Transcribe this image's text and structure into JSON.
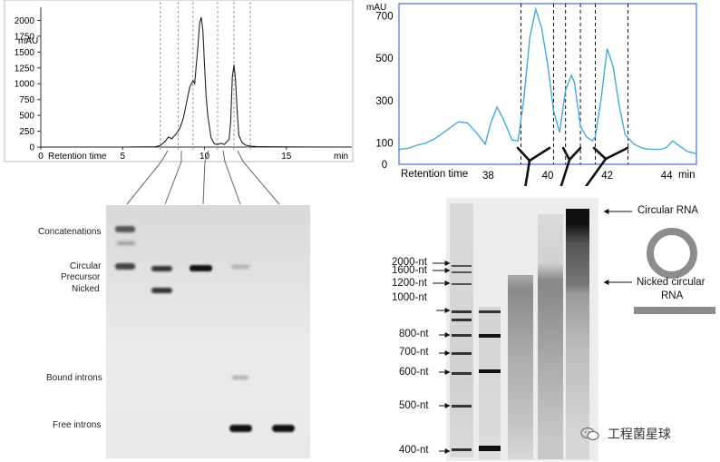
{
  "left_chromatogram": {
    "chart_data": {
      "type": "line",
      "ylabel": "mAU",
      "xlabel": "Retention time",
      "x_unit": "min",
      "yticks": [
        "2000",
        "1750",
        "1500",
        "1250",
        "1000",
        "750",
        "500",
        "250",
        "0"
      ],
      "xticks": [
        "0",
        "5",
        "10",
        "15"
      ],
      "xlim": [
        0,
        19
      ],
      "ylim": [
        0,
        2150
      ],
      "fraction_bounds_min": [
        7.3,
        8.4,
        9.3,
        10.8,
        11.8,
        12.8
      ],
      "series": [
        {
          "x": [
            0,
            5,
            7.0,
            7.3,
            7.6,
            7.8,
            8.0,
            8.3,
            8.5,
            8.7,
            8.9,
            9.1,
            9.3,
            9.4,
            9.6,
            9.7,
            9.8,
            9.9,
            10.0,
            10.1,
            10.2,
            10.4,
            10.6,
            10.8,
            11.0,
            11.2,
            11.5,
            11.6,
            11.7,
            11.8,
            11.9,
            12.0,
            12.1,
            12.3,
            12.5,
            12.8,
            13.2,
            14,
            16,
            19
          ],
          "y": [
            0,
            0,
            5,
            25,
            90,
            160,
            130,
            220,
            300,
            450,
            700,
            950,
            1050,
            1000,
            1600,
            1950,
            2050,
            1850,
            1300,
            800,
            500,
            150,
            50,
            40,
            60,
            40,
            120,
            400,
            1100,
            1300,
            1050,
            550,
            180,
            70,
            30,
            15,
            8,
            4,
            2,
            0
          ]
        }
      ]
    }
  },
  "right_chromatogram": {
    "chart_data": {
      "type": "line",
      "ylabel": "mAU",
      "xlabel": "Retention time",
      "x_unit": "min",
      "yticks": [
        "700",
        "500",
        "300",
        "100",
        "0"
      ],
      "xticks": [
        "38",
        "40",
        "42",
        "44"
      ],
      "xlim": [
        35.0,
        45.0
      ],
      "ylim": [
        0,
        740
      ],
      "fraction_bounds_min": [
        39.1,
        40.2,
        40.6,
        41.1,
        41.6,
        42.7
      ],
      "series": [
        {
          "x": [
            35.0,
            35.3,
            35.6,
            35.9,
            36.2,
            36.5,
            36.8,
            37.0,
            37.3,
            37.6,
            37.9,
            38.1,
            38.3,
            38.5,
            38.8,
            39.0,
            39.2,
            39.4,
            39.6,
            39.8,
            40.0,
            40.2,
            40.4,
            40.6,
            40.8,
            40.9,
            41.1,
            41.3,
            41.5,
            41.6,
            41.8,
            41.9,
            42.0,
            42.2,
            42.4,
            42.6,
            42.9,
            43.2,
            43.5,
            43.8,
            44.0,
            44.2,
            44.4,
            44.7,
            45.0
          ],
          "y": [
            70,
            75,
            90,
            100,
            120,
            150,
            180,
            200,
            195,
            150,
            95,
            200,
            270,
            215,
            115,
            110,
            310,
            600,
            730,
            640,
            470,
            250,
            150,
            350,
            420,
            385,
            180,
            130,
            110,
            130,
            310,
            430,
            545,
            460,
            280,
            140,
            95,
            75,
            70,
            70,
            80,
            110,
            90,
            60,
            50
          ]
        }
      ]
    }
  },
  "left_gel": {
    "band_labels": [
      "Concatenations",
      "Circular",
      "Precursor",
      "Nicked",
      "Bound introns",
      "Free introns"
    ]
  },
  "right_gel": {
    "ladder_labels": [
      "2000-nt",
      "1600-nt",
      "1200-nt",
      "1000-nt",
      "800-nt",
      "700-nt",
      "600-nt",
      "500-nt",
      "400-nt"
    ],
    "annotations": {
      "circular": "Circular RNA",
      "nicked_line1": "Nicked circular",
      "nicked_line2": "RNA"
    }
  },
  "watermark": {
    "text": "工程菌星球"
  },
  "colors": {
    "left_trace": "#222222",
    "right_trace": "#4aa8d8",
    "right_frame": "#4a6fd6",
    "gel_background": "#e6e6e6",
    "band": "#1a1a1a"
  }
}
